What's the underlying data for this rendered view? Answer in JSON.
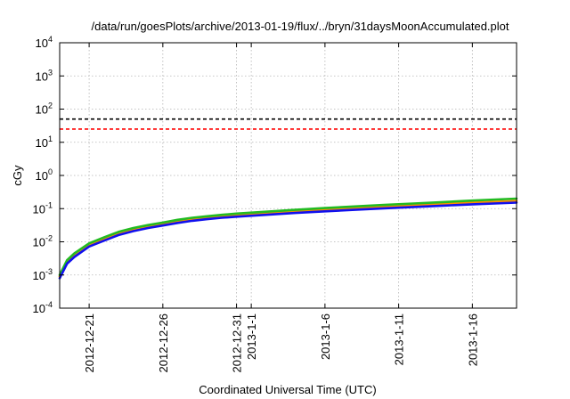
{
  "chart_data": {
    "type": "line",
    "title": "/data/run/goesPlots/archive/2013-01-19/flux/../bryn/31daysMoonAccumulated.plot",
    "xlabel": "Coordinated Universal Time (UTC)",
    "ylabel": "cGy",
    "yscale": "log",
    "ylim": [
      0.0001,
      10000
    ],
    "xlim": [
      "2012-12-19",
      "2013-01-19"
    ],
    "grid": true,
    "y_ticks": [
      {
        "value": 0.0001,
        "base": "10",
        "exp": "-4"
      },
      {
        "value": 0.001,
        "base": "10",
        "exp": "-3"
      },
      {
        "value": 0.01,
        "base": "10",
        "exp": "-2"
      },
      {
        "value": 0.1,
        "base": "10",
        "exp": "-1"
      },
      {
        "value": 1,
        "base": "10",
        "exp": "0"
      },
      {
        "value": 10,
        "base": "10",
        "exp": "1"
      },
      {
        "value": 100,
        "base": "10",
        "exp": "2"
      },
      {
        "value": 1000,
        "base": "10",
        "exp": "3"
      },
      {
        "value": 10000,
        "base": "10",
        "exp": "4"
      }
    ],
    "x_ticks": [
      {
        "date": "2012-12-21",
        "label": "2012-12-21"
      },
      {
        "date": "2012-12-26",
        "label": "2012-12-26"
      },
      {
        "date": "2012-12-31",
        "label": "2012-12-31"
      },
      {
        "date": "2013-01-01",
        "label": "2013-1-1"
      },
      {
        "date": "2013-01-06",
        "label": "2013-1-6"
      },
      {
        "date": "2013-01-11",
        "label": "2013-1-11"
      },
      {
        "date": "2013-01-16",
        "label": "2013-1-16"
      }
    ],
    "reference_lines": [
      {
        "value": 50,
        "color": "#000000",
        "style": "dashed"
      },
      {
        "value": 25,
        "color": "#ff0000",
        "style": "dashed"
      }
    ],
    "series": [
      {
        "color": "#ff8c00",
        "points": [
          {
            "x": "2012-12-19",
            "y": 0.0009
          },
          {
            "x": "2012-12-19T12:00",
            "y": 0.0025
          },
          {
            "x": "2012-12-20",
            "y": 0.004
          },
          {
            "x": "2012-12-21",
            "y": 0.008
          },
          {
            "x": "2012-12-22",
            "y": 0.012
          },
          {
            "x": "2012-12-23",
            "y": 0.018
          },
          {
            "x": "2012-12-24",
            "y": 0.023
          },
          {
            "x": "2012-12-25",
            "y": 0.029
          },
          {
            "x": "2012-12-26",
            "y": 0.034
          },
          {
            "x": "2012-12-27",
            "y": 0.041
          },
          {
            "x": "2012-12-28",
            "y": 0.048
          },
          {
            "x": "2012-12-29",
            "y": 0.053
          },
          {
            "x": "2012-12-30",
            "y": 0.058
          },
          {
            "x": "2012-12-31",
            "y": 0.063
          },
          {
            "x": "2013-01-02",
            "y": 0.072
          },
          {
            "x": "2013-01-04",
            "y": 0.081
          },
          {
            "x": "2013-01-06",
            "y": 0.092
          },
          {
            "x": "2013-01-08",
            "y": 0.102
          },
          {
            "x": "2013-01-10",
            "y": 0.113
          },
          {
            "x": "2013-01-12",
            "y": 0.125
          },
          {
            "x": "2013-01-14",
            "y": 0.137
          },
          {
            "x": "2013-01-16",
            "y": 0.152
          },
          {
            "x": "2013-01-19",
            "y": 0.17
          }
        ]
      },
      {
        "color": "#22bb22",
        "points": [
          {
            "x": "2012-12-19",
            "y": 0.001
          },
          {
            "x": "2012-12-19T12:00",
            "y": 0.0028
          },
          {
            "x": "2012-12-20",
            "y": 0.0045
          },
          {
            "x": "2012-12-21",
            "y": 0.009
          },
          {
            "x": "2012-12-22",
            "y": 0.0135
          },
          {
            "x": "2012-12-23",
            "y": 0.02
          },
          {
            "x": "2012-12-24",
            "y": 0.026
          },
          {
            "x": "2012-12-25",
            "y": 0.032
          },
          {
            "x": "2012-12-26",
            "y": 0.038
          },
          {
            "x": "2012-12-27",
            "y": 0.046
          },
          {
            "x": "2012-12-28",
            "y": 0.053
          },
          {
            "x": "2012-12-29",
            "y": 0.059
          },
          {
            "x": "2012-12-30",
            "y": 0.065
          },
          {
            "x": "2012-12-31",
            "y": 0.071
          },
          {
            "x": "2013-01-02",
            "y": 0.081
          },
          {
            "x": "2013-01-04",
            "y": 0.092
          },
          {
            "x": "2013-01-06",
            "y": 0.104
          },
          {
            "x": "2013-01-08",
            "y": 0.116
          },
          {
            "x": "2013-01-10",
            "y": 0.129
          },
          {
            "x": "2013-01-12",
            "y": 0.143
          },
          {
            "x": "2013-01-14",
            "y": 0.158
          },
          {
            "x": "2013-01-16",
            "y": 0.175
          },
          {
            "x": "2013-01-19",
            "y": 0.2
          }
        ]
      },
      {
        "color": "#1010ee",
        "points": [
          {
            "x": "2012-12-19",
            "y": 0.0008
          },
          {
            "x": "2012-12-19T12:00",
            "y": 0.0022
          },
          {
            "x": "2012-12-20",
            "y": 0.0035
          },
          {
            "x": "2012-12-21",
            "y": 0.0072
          },
          {
            "x": "2012-12-22",
            "y": 0.0108
          },
          {
            "x": "2012-12-23",
            "y": 0.016
          },
          {
            "x": "2012-12-24",
            "y": 0.021
          },
          {
            "x": "2012-12-25",
            "y": 0.026
          },
          {
            "x": "2012-12-26",
            "y": 0.031
          },
          {
            "x": "2012-12-27",
            "y": 0.037
          },
          {
            "x": "2012-12-28",
            "y": 0.043
          },
          {
            "x": "2012-12-29",
            "y": 0.048
          },
          {
            "x": "2012-12-30",
            "y": 0.053
          },
          {
            "x": "2012-12-31",
            "y": 0.057
          },
          {
            "x": "2013-01-02",
            "y": 0.065
          },
          {
            "x": "2013-01-04",
            "y": 0.074
          },
          {
            "x": "2013-01-06",
            "y": 0.083
          },
          {
            "x": "2013-01-08",
            "y": 0.092
          },
          {
            "x": "2013-01-10",
            "y": 0.102
          },
          {
            "x": "2013-01-12",
            "y": 0.112
          },
          {
            "x": "2013-01-14",
            "y": 0.123
          },
          {
            "x": "2013-01-16",
            "y": 0.135
          },
          {
            "x": "2013-01-19",
            "y": 0.152
          }
        ]
      }
    ]
  }
}
